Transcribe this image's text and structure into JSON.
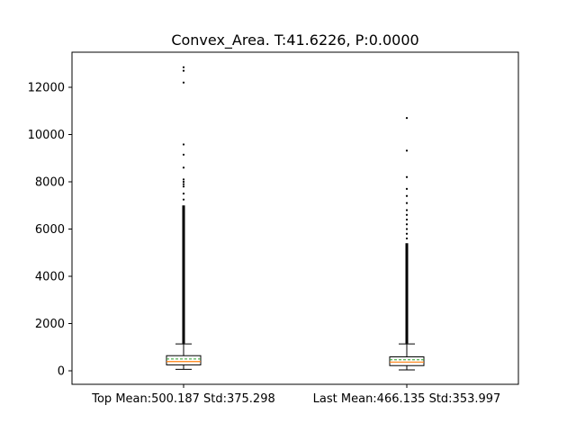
{
  "chart_data": {
    "type": "box",
    "title": "Convex_Area. T:41.6226, P:0.0000",
    "xlabel": "",
    "ylabel": "",
    "ylim": [
      -600,
      13100
    ],
    "yticks": [
      0,
      2000,
      4000,
      6000,
      8000,
      10000,
      12000
    ],
    "categories": [
      "Top Mean:500.187 Std:375.298",
      "Last Mean:466.135 Std:353.997"
    ],
    "boxes": [
      {
        "label": "Top Mean:500.187 Std:375.298",
        "whisker_low": 60,
        "q1": 250,
        "median": 390,
        "q3": 640,
        "whisker_high": 1140,
        "mean": 500.187,
        "outliers_dense_range": [
          1150,
          7000
        ],
        "outliers": [
          12850,
          12700,
          12200,
          9580,
          9150,
          8600,
          8100,
          8000,
          7900,
          7800,
          7500,
          7250
        ]
      },
      {
        "label": "Last Mean:466.135 Std:353.997",
        "whisker_low": 40,
        "q1": 220,
        "median": 370,
        "q3": 590,
        "whisker_high": 1140,
        "mean": 466.135,
        "outliers_dense_range": [
          1150,
          5400
        ],
        "outliers": [
          10700,
          9320,
          8200,
          7700,
          7400,
          7100,
          6800,
          6600,
          6400,
          6200,
          6000,
          5800,
          5600
        ]
      }
    ],
    "colors": {
      "median": "#ff7f0e",
      "mean": "#2ca02c",
      "box": "#000000",
      "outlier": "#000000"
    },
    "grid": false,
    "legend": "none"
  }
}
